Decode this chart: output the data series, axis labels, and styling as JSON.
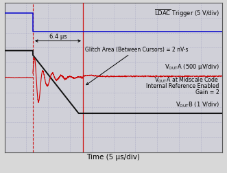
{
  "bg_color": "#d8d8d8",
  "plot_bg_color": "#d0d0d8",
  "grid_color": "#9999bb",
  "border_color": "#555555",
  "xlabel": "Time (5 μs/div)",
  "xlim": [
    0,
    10
  ],
  "ylim": [
    0,
    10
  ],
  "cursor1_x": 1.3,
  "cursor2_x": 3.6,
  "cursor1_color": "#cc0000",
  "cursor2_color": "#cc0000",
  "ldac_label": "$\\overline{\\mathrm{LDAC}}$ Trigger (5 V/div)",
  "vouta_label": "V$_{\\mathrm{OUT}}$A (500 μV/div)",
  "voutb_label": "V$_{\\mathrm{OUT}}$B (1 V/div)",
  "annotation_label": "Glitch Area (Between Cursors) = 2 nV-s",
  "time_label": "6.4 μs",
  "midscale_line1": "V$_{\\mathrm{OUT}}$A at Midscale Code",
  "midscale_line2": "Internal Reference Enabled",
  "midscale_line3": "Gain = 2",
  "ldac_color": "#0000cc",
  "vouta_color": "#cc0000",
  "voutb_color": "#111111",
  "xlabel_fontsize": 7.5,
  "label_fontsize": 6.0,
  "annotation_fontsize": 5.5,
  "time_fontsize": 6.0
}
